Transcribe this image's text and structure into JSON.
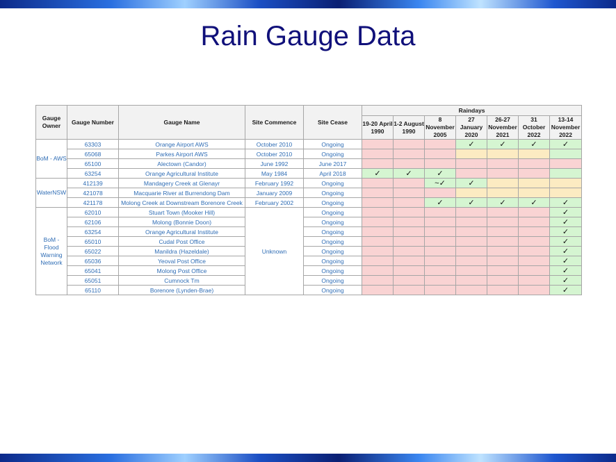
{
  "title": "Rain Gauge Data",
  "colors": {
    "red": "#f9d3d3",
    "green": "#d5f5d1",
    "yellow": "#fcebc2",
    "title": "#10107a"
  },
  "headers": {
    "owner": "Gauge Owner",
    "number": "Gauge Number",
    "name": "Gauge Name",
    "commence": "Site Commence",
    "cease": "Site Cease",
    "raindays": "Raindays",
    "days": [
      "19-20 April 1990",
      "1-2 August 1990",
      "8 November 2005",
      "27 January 2020",
      "26-27 November 2021",
      "31 October 2022",
      "13-14 November 2022"
    ]
  },
  "owners": [
    "BoM - AWS",
    "WaterNSW",
    "BoM - Flood Warning Network"
  ],
  "unknown": "Unknown",
  "rows": [
    {
      "number": "63303",
      "name": "Orange Airport AWS",
      "commence": "October 2010",
      "cease": "Ongoing",
      "cells": [
        "r",
        "r",
        "r",
        "g",
        "g",
        "g",
        "g"
      ],
      "marks": [
        "",
        "",
        "",
        "✓",
        "✓",
        "✓",
        "✓"
      ]
    },
    {
      "number": "65068",
      "name": "Parkes Airport AWS",
      "commence": "October 2010",
      "cease": "Ongoing",
      "cells": [
        "r",
        "r",
        "r",
        "y",
        "y",
        "y",
        "g"
      ],
      "marks": [
        "",
        "",
        "",
        "",
        "",
        "",
        ""
      ]
    },
    {
      "number": "65100",
      "name": "Alectown (Candor)",
      "commence": "June 1992",
      "cease": "June 2017",
      "cells": [
        "r",
        "r",
        "r",
        "r",
        "r",
        "r",
        "r"
      ],
      "marks": [
        "",
        "",
        "",
        "",
        "",
        "",
        ""
      ]
    },
    {
      "number": "63254",
      "name": "Orange Agricultural Institute",
      "commence": "May 1984",
      "cease": "April 2018",
      "cells": [
        "g",
        "g",
        "g",
        "r",
        "r",
        "r",
        "g"
      ],
      "marks": [
        "✓",
        "✓",
        "✓",
        "",
        "",
        "",
        ""
      ]
    },
    {
      "number": "412139",
      "name": "Mandagery Creek at Glenayr",
      "commence": "February 1992",
      "cease": "Ongoing",
      "cells": [
        "r",
        "r",
        "g",
        "g",
        "y",
        "y",
        "y"
      ],
      "marks": [
        "",
        "",
        "~✓",
        "✓",
        "",
        "",
        ""
      ]
    },
    {
      "number": "421078",
      "name": "Macquarie River at Burrendong Dam",
      "commence": "January 2009",
      "cease": "Ongoing",
      "cells": [
        "r",
        "r",
        "r",
        "y",
        "y",
        "y",
        "y"
      ],
      "marks": [
        "",
        "",
        "",
        "",
        "",
        "",
        ""
      ]
    },
    {
      "number": "421178",
      "name": "Molong Creek at Downstream Borenore Creek",
      "commence": "February 2002",
      "cease": "Ongoing",
      "cells": [
        "r",
        "r",
        "g",
        "g",
        "g",
        "g",
        "g"
      ],
      "marks": [
        "",
        "",
        "✓",
        "✓",
        "✓",
        "✓",
        "✓"
      ]
    },
    {
      "number": "62010",
      "name": "Stuart Town (Mooker Hill)",
      "cease": "Ongoing",
      "cells": [
        "r",
        "r",
        "r",
        "r",
        "r",
        "r",
        "g"
      ],
      "marks": [
        "",
        "",
        "",
        "",
        "",
        "",
        "✓"
      ]
    },
    {
      "number": "62106",
      "name": "Molong (Bonnie Doon)",
      "cease": "Ongoing",
      "cells": [
        "r",
        "r",
        "r",
        "r",
        "r",
        "r",
        "g"
      ],
      "marks": [
        "",
        "",
        "",
        "",
        "",
        "",
        "✓"
      ]
    },
    {
      "number": "63254",
      "name": "Orange Agricultural Institute",
      "cease": "Ongoing",
      "cells": [
        "r",
        "r",
        "r",
        "r",
        "r",
        "r",
        "g"
      ],
      "marks": [
        "",
        "",
        "",
        "",
        "",
        "",
        "✓"
      ]
    },
    {
      "number": "65010",
      "name": "Cudal Post Office",
      "cease": "Ongoing",
      "cells": [
        "r",
        "r",
        "r",
        "r",
        "r",
        "r",
        "g"
      ],
      "marks": [
        "",
        "",
        "",
        "",
        "",
        "",
        "✓"
      ]
    },
    {
      "number": "65022",
      "name": "Manildra (Hazeldale)",
      "cease": "Ongoing",
      "cells": [
        "r",
        "r",
        "r",
        "r",
        "r",
        "r",
        "g"
      ],
      "marks": [
        "",
        "",
        "",
        "",
        "",
        "",
        "✓"
      ]
    },
    {
      "number": "65036",
      "name": "Yeoval Post Office",
      "cease": "Ongoing",
      "cells": [
        "r",
        "r",
        "r",
        "r",
        "r",
        "r",
        "g"
      ],
      "marks": [
        "",
        "",
        "",
        "",
        "",
        "",
        "✓"
      ]
    },
    {
      "number": "65041",
      "name": "Molong Post Office",
      "cease": "Ongoing",
      "cells": [
        "r",
        "r",
        "r",
        "r",
        "r",
        "r",
        "g"
      ],
      "marks": [
        "",
        "",
        "",
        "",
        "",
        "",
        "✓"
      ]
    },
    {
      "number": "65051",
      "name": "Cumnock Tm",
      "cease": "Ongoing",
      "cells": [
        "r",
        "r",
        "r",
        "r",
        "r",
        "r",
        "g"
      ],
      "marks": [
        "",
        "",
        "",
        "",
        "",
        "",
        "✓"
      ]
    },
    {
      "number": "65110",
      "name": "Borenore (Lynden-Brae)",
      "cease": "Ongoing",
      "cells": [
        "r",
        "r",
        "r",
        "r",
        "r",
        "r",
        "g"
      ],
      "marks": [
        "",
        "",
        "",
        "",
        "",
        "",
        "✓"
      ]
    }
  ]
}
